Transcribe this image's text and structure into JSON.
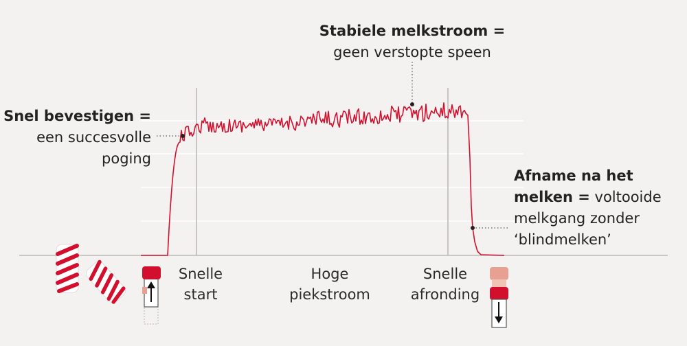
{
  "colors": {
    "background": "#f3f2f1",
    "curve": "#d2102e",
    "grid": "#ffffff",
    "axis": "#bdb9b6",
    "text": "#222222",
    "marker_red": "#d2102e",
    "marker_faded": "#e8a092"
  },
  "annotations": {
    "stable": {
      "title": "Stabiele melkstroom =",
      "text": "geen verstopte speen"
    },
    "attach": {
      "title": "Snel bevestigen =",
      "line1": "een succesvolle",
      "line2": "poging"
    },
    "decline": {
      "title_line1": "Afname na het",
      "title_line2": "melken =",
      "text_line2": "voltooide",
      "text_line3": "melkgang zonder",
      "text_line4": "‘blindmelken’"
    }
  },
  "phases": [
    {
      "line1": "Snelle",
      "line2": "start"
    },
    {
      "line1": "Hoge",
      "line2": "piekstroom"
    },
    {
      "line1": "Snelle",
      "line2": "afronding"
    }
  ],
  "icons": {
    "brush_upright": "brush-roller-upright-icon",
    "brush_tilted": "brush-roller-tilted-icon",
    "cup_up": "teat-cup-up-arrow-icon",
    "cup_down": "teat-cup-down-arrow-icon"
  }
}
